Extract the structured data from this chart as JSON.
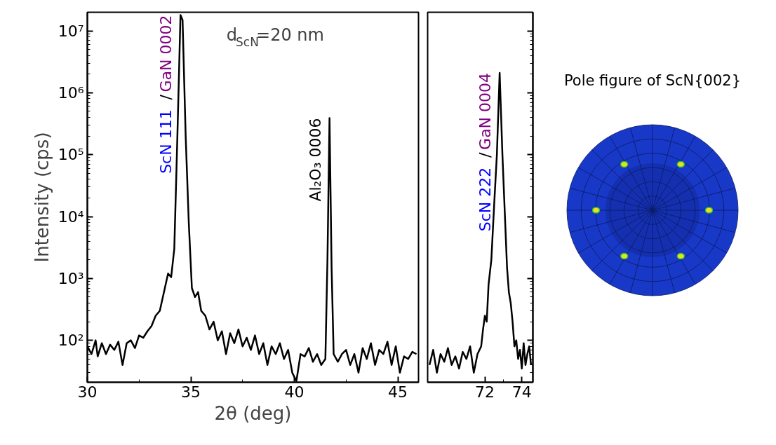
{
  "chart_data": [
    {
      "type": "line",
      "xlabel": "2θ (deg)",
      "ylabel": "Intensity (cps)",
      "log": "y",
      "x": [
        30.0,
        30.2,
        30.4,
        30.5,
        30.7,
        30.9,
        31.1,
        31.3,
        31.5,
        31.7,
        31.9,
        32.1,
        32.3,
        32.5,
        32.7,
        32.9,
        33.1,
        33.3,
        33.5,
        33.7,
        33.9,
        34.05,
        34.2,
        34.35,
        34.5,
        34.6,
        34.75,
        34.9,
        35.05,
        35.2,
        35.35,
        35.5,
        35.7,
        35.9,
        36.1,
        36.3,
        36.5,
        36.7,
        36.9,
        37.1,
        37.3,
        37.5,
        37.7,
        37.9,
        38.1,
        38.3,
        38.5,
        38.7,
        38.9,
        39.1,
        39.3,
        39.5,
        39.7,
        39.9,
        40.1,
        40.3,
        40.5,
        40.7,
        40.9,
        41.1,
        41.3,
        41.5,
        41.6,
        41.7,
        41.8,
        41.9,
        42.1,
        42.3,
        42.5,
        42.7,
        42.9,
        43.1,
        43.3,
        43.5,
        43.7,
        43.9,
        44.1,
        44.3,
        44.5,
        44.7,
        44.9,
        45.1,
        45.3,
        45.5,
        45.7,
        45.9
      ],
      "series": [
        {
          "color": "#000000",
          "values": [
            80,
            60,
            100,
            55,
            90,
            60,
            85,
            70,
            95,
            40,
            90,
            100,
            75,
            120,
            110,
            140,
            170,
            250,
            300,
            600,
            1200,
            1050,
            3000,
            200000,
            18000000,
            15000000,
            200000,
            8000,
            700,
            500,
            600,
            300,
            250,
            150,
            200,
            100,
            140,
            60,
            130,
            90,
            150,
            80,
            110,
            70,
            120,
            60,
            90,
            40,
            80,
            60,
            90,
            50,
            70,
            30,
            22,
            60,
            55,
            75,
            45,
            60,
            40,
            50,
            2000,
            390000,
            1500,
            60,
            45,
            60,
            70,
            40,
            60,
            30,
            75,
            50,
            90,
            40,
            70,
            60,
            95,
            40,
            80,
            30,
            55,
            50,
            65,
            60
          ]
        }
      ],
      "xlim": [
        30,
        46
      ],
      "xticks": [
        30,
        35,
        40,
        45
      ],
      "ylim": [
        21,
        20000000
      ],
      "yticks": [
        {
          "value": 100,
          "label": "10²"
        },
        {
          "value": 1000,
          "label": "10³"
        },
        {
          "value": 10000,
          "label": "10⁴"
        },
        {
          "value": 100000,
          "label": "10⁵"
        },
        {
          "value": 1000000,
          "label": "10⁶"
        },
        {
          "value": 10000000,
          "label": "10⁷"
        }
      ],
      "annotations": [
        "ScN 111",
        "/",
        {
          "text": "GaN 0002",
          "x": 34.5,
          "y": 18000000
        },
        {
          "text": "Al₂O₃ 0006",
          "x": 41.7,
          "y": 390000
        },
        "d$_{ScN}$=20 nm"
      ]
    },
    {
      "type": "line",
      "log": "y",
      "tick_labels": "x",
      "x": [
        69.0,
        69.2,
        69.4,
        69.6,
        69.8,
        70.0,
        70.2,
        70.4,
        70.6,
        70.8,
        71.0,
        71.2,
        71.4,
        71.6,
        71.8,
        71.9,
        72.0,
        72.1,
        72.2,
        72.35,
        72.5,
        72.65,
        72.8,
        72.95,
        73.1,
        73.2,
        73.3,
        73.4,
        73.5,
        73.6,
        73.7,
        73.8,
        73.9,
        74.0,
        74.1,
        74.2,
        74.3,
        74.4,
        74.5
      ],
      "series": [
        {
          "color": "#000000",
          "values": [
            40,
            70,
            30,
            60,
            45,
            75,
            40,
            55,
            35,
            65,
            50,
            80,
            30,
            60,
            80,
            150,
            250,
            200,
            800,
            2000,
            15000,
            100000,
            2100000,
            100000,
            8000,
            1500,
            600,
            400,
            200,
            80,
            100,
            50,
            70,
            35,
            90,
            40,
            60,
            80,
            40
          ]
        }
      ],
      "xlim": [
        68.9,
        74.6
      ],
      "xticks": [
        72,
        74
      ],
      "ylim": [
        21,
        20000000
      ],
      "yticks": [
        {
          "value": 100,
          "label": null
        },
        {
          "value": 1000,
          "label": null
        },
        {
          "value": 10000,
          "label": null
        },
        {
          "value": 100000,
          "label": null
        },
        {
          "value": 1000000,
          "label": null
        },
        {
          "value": 10000000,
          "label": null
        }
      ],
      "annotations": [
        "ScN 222",
        "/",
        {
          "text": "GaN 0004",
          "x": 72.8,
          "y": 2100000
        },
        "Pole figure of ScN{002}"
      ]
    }
  ]
}
